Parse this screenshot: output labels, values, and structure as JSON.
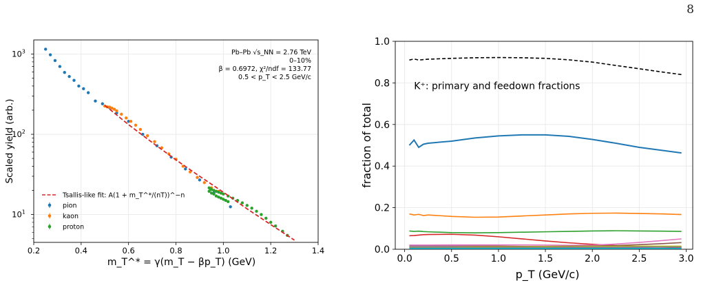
{
  "page_number": "8",
  "chart_data": [
    {
      "type": "scatter",
      "title": "",
      "xlabel": "m_T^* = γ(m_T − βp_T) (GeV)",
      "ylabel": "Scaled yield (arb.)",
      "xlim": [
        0.2,
        1.4
      ],
      "ylim": [
        4.5,
        1500
      ],
      "yscale": "log",
      "grid": true,
      "xticks": [
        "0.2",
        "0.4",
        "0.6",
        "0.8",
        "1.0",
        "1.2",
        "1.4"
      ],
      "yticks": [
        {
          "value": 10,
          "base": "10",
          "exp": "1"
        },
        {
          "value": 100,
          "base": "10",
          "exp": "2"
        },
        {
          "value": 1000,
          "base": "10",
          "exp": "3"
        }
      ],
      "annotation_lines": [
        "Pb–Pb √s_NN = 2.76 TeV",
        "0–10%",
        "β = 0.6972, χ²/ndf = 133.77",
        "0.5 < p_T < 2.5 GeV/c"
      ],
      "legend_position": "lower-left",
      "fit": {
        "name": "Tsallis-like fit: A(1 + m_T^*/(nT))^−n",
        "color": "#d62728",
        "x": [
          0.5,
          0.6,
          0.7,
          0.8,
          0.9,
          1.0,
          1.1,
          1.2,
          1.3
        ],
        "y": [
          230,
          132,
          79,
          48,
          30,
          19,
          11.8,
          7.5,
          4.8
        ]
      },
      "series": [
        {
          "name": "pion",
          "color": "#1f77b4",
          "x": [
            0.25,
            0.27,
            0.29,
            0.31,
            0.33,
            0.35,
            0.37,
            0.39,
            0.41,
            0.43,
            0.46,
            0.49,
            0.52,
            0.55,
            0.6,
            0.66,
            0.72,
            0.78,
            0.84,
            0.9,
            0.96,
            1.03
          ],
          "y": [
            1150,
            980,
            830,
            700,
            590,
            525,
            470,
            400,
            370,
            330,
            260,
            240,
            215,
            185,
            145,
            100,
            72,
            52,
            37,
            27,
            18.5,
            12.5
          ]
        },
        {
          "name": "kaon",
          "color": "#ff7f0e",
          "x": [
            0.5,
            0.51,
            0.52,
            0.53,
            0.54,
            0.55,
            0.57,
            0.59,
            0.61,
            0.63,
            0.65,
            0.68,
            0.71,
            0.74,
            0.77,
            0.8,
            0.83,
            0.86,
            0.89,
            0.92,
            0.95,
            0.98
          ],
          "y": [
            225,
            220,
            218,
            212,
            205,
            196,
            178,
            160,
            145,
            130,
            115,
            96,
            81,
            68,
            57,
            49,
            40,
            34,
            29,
            25,
            21.5,
            19.5
          ]
        },
        {
          "name": "proton",
          "color": "#2ca02c",
          "x": [
            0.94,
            0.945,
            0.95,
            0.96,
            0.97,
            0.98,
            0.99,
            1.0,
            1.02,
            1.04,
            1.06,
            1.08,
            1.1,
            1.12,
            1.14,
            1.16,
            1.18,
            1.2,
            1.22,
            1.25,
            1.27
          ],
          "y": [
            21.5,
            21,
            20.5,
            20,
            19.5,
            19,
            18.5,
            18,
            17,
            16,
            15,
            14,
            13,
            12,
            11,
            10,
            9,
            8,
            7.2,
            6.2,
            5.5
          ]
        },
        {
          "name": "",
          "color": "#2ca02c",
          "x": [
            0.94,
            0.95,
            0.96,
            0.97,
            0.98,
            0.99,
            1.0,
            1.01,
            1.02
          ],
          "y": [
            19.5,
            18.5,
            18,
            17,
            16.5,
            16,
            15.5,
            15,
            14.5
          ]
        }
      ]
    },
    {
      "type": "line",
      "title": "",
      "xlabel": "p_T (GeV/c)",
      "ylabel": "fraction of total",
      "xlim": [
        -0.1,
        3.07
      ],
      "ylim": [
        0,
        1.0
      ],
      "grid": true,
      "xticks": [
        "0.0",
        "0.5",
        "1.0",
        "1.5",
        "2.0",
        "2.5",
        "3.0"
      ],
      "yticks": [
        "0.0",
        "0.2",
        "0.4",
        "0.6",
        "0.8",
        "1.0"
      ],
      "annotation": "K⁺: primary and feedown fractions",
      "x": [
        0.05,
        0.1,
        0.15,
        0.2,
        0.25,
        0.5,
        0.75,
        1.0,
        1.25,
        1.5,
        1.75,
        2.0,
        2.25,
        2.5,
        2.75,
        2.95
      ],
      "series": [
        {
          "name": "",
          "color": "#000000",
          "dashed": true,
          "values": [
            0.91,
            0.915,
            0.91,
            0.912,
            0.914,
            0.918,
            0.921,
            0.922,
            0.921,
            0.918,
            0.911,
            0.9,
            0.884,
            0.868,
            0.852,
            0.84
          ]
        },
        {
          "name": "",
          "color": "#1f77b4",
          "values": [
            0.5,
            0.525,
            0.49,
            0.505,
            0.51,
            0.52,
            0.535,
            0.545,
            0.55,
            0.55,
            0.543,
            0.528,
            0.51,
            0.49,
            0.475,
            0.463
          ]
        },
        {
          "name": "",
          "color": "#ff7f0e",
          "values": [
            0.17,
            0.165,
            0.168,
            0.162,
            0.165,
            0.158,
            0.154,
            0.155,
            0.16,
            0.165,
            0.17,
            0.173,
            0.174,
            0.172,
            0.17,
            0.167
          ]
        },
        {
          "name": "",
          "color": "#2ca02c",
          "values": [
            0.088,
            0.086,
            0.087,
            0.085,
            0.084,
            0.08,
            0.079,
            0.08,
            0.082,
            0.084,
            0.086,
            0.088,
            0.089,
            0.088,
            0.087,
            0.086
          ]
        },
        {
          "name": "",
          "color": "#d62728",
          "values": [
            0.065,
            0.066,
            0.068,
            0.07,
            0.071,
            0.072,
            0.068,
            0.06,
            0.05,
            0.04,
            0.031,
            0.024,
            0.018,
            0.013,
            0.01,
            0.008
          ]
        },
        {
          "name": "",
          "color": "#e377c2",
          "values": [
            0.02,
            0.02,
            0.02,
            0.02,
            0.02,
            0.021,
            0.021,
            0.021,
            0.021,
            0.02,
            0.019,
            0.02,
            0.025,
            0.033,
            0.042,
            0.05
          ]
        },
        {
          "name": "",
          "color": "#8c564b",
          "values": [
            0.015,
            0.015,
            0.015,
            0.015,
            0.015,
            0.015,
            0.015,
            0.015,
            0.014,
            0.014,
            0.015,
            0.016,
            0.018,
            0.022,
            0.027,
            0.032
          ]
        },
        {
          "name": "",
          "color": "#9467bd",
          "values": [
            0.014,
            0.014,
            0.014,
            0.014,
            0.014,
            0.013,
            0.012,
            0.011,
            0.01,
            0.009,
            0.008,
            0.007,
            0.006,
            0.006,
            0.005,
            0.005
          ]
        },
        {
          "name": "",
          "color": "#bcbd22",
          "values": [
            0.01,
            0.01,
            0.01,
            0.01,
            0.01,
            0.01,
            0.011,
            0.012,
            0.012,
            0.013,
            0.013,
            0.014,
            0.014,
            0.015,
            0.015,
            0.015
          ]
        },
        {
          "name": "",
          "color": "#7f7f7f",
          "values": [
            0.008,
            0.008,
            0.008,
            0.008,
            0.008,
            0.008,
            0.008,
            0.009,
            0.009,
            0.009,
            0.01,
            0.01,
            0.01,
            0.011,
            0.011,
            0.011
          ]
        },
        {
          "name": "",
          "color": "#17becf",
          "values": [
            0.004,
            0.004,
            0.004,
            0.004,
            0.004,
            0.004,
            0.004,
            0.004,
            0.004,
            0.004,
            0.004,
            0.004,
            0.004,
            0.004,
            0.004,
            0.004
          ]
        }
      ]
    }
  ]
}
